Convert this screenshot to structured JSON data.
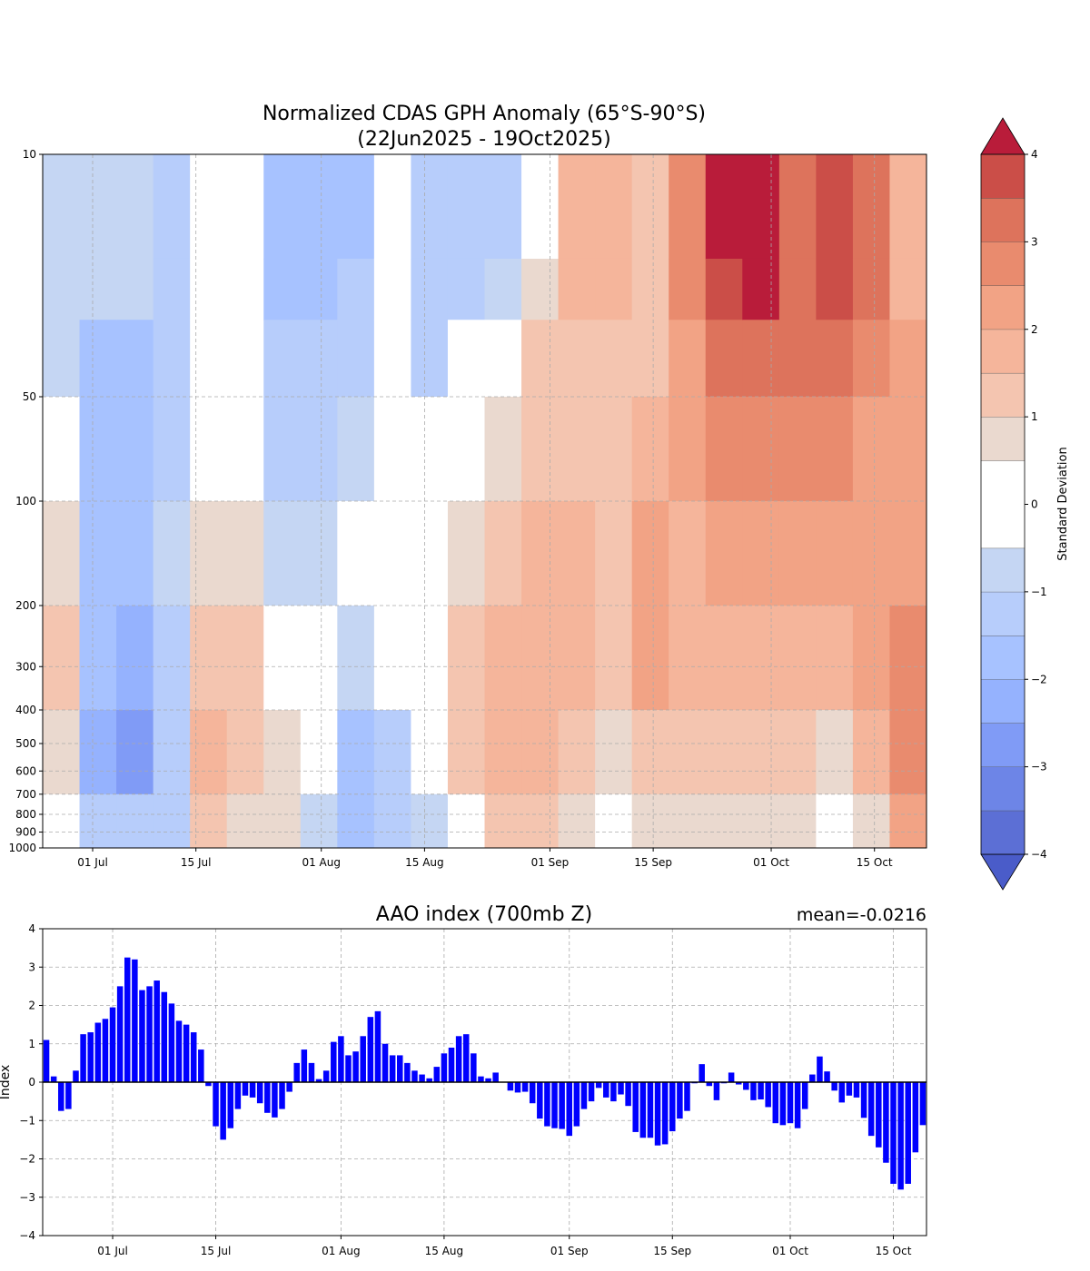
{
  "chart_data": [
    {
      "type": "heatmap",
      "title_line1": "Normalized CDAS GPH Anomaly (65°S-90°S)",
      "title_line2": "(22Jun2025 - 19Oct2025)",
      "ylabel_ticks": [
        "10",
        "50",
        "100",
        "200",
        "300",
        "400",
        "500",
        "600",
        "700",
        "800",
        "900",
        "1000"
      ],
      "ytick_values": [
        10,
        50,
        100,
        200,
        300,
        400,
        500,
        600,
        700,
        800,
        900,
        1000
      ],
      "ylim": [
        1000,
        10
      ],
      "yscale": "log",
      "xtick_labels": [
        "01 Jul",
        "15 Jul",
        "01 Aug",
        "15 Aug",
        "01 Sep",
        "15 Sep",
        "01 Oct",
        "15 Oct"
      ],
      "xtick_days": [
        9,
        23,
        40,
        54,
        71,
        85,
        101,
        115
      ],
      "grid_level_bounds": [
        10,
        20,
        30,
        50,
        100,
        200,
        400,
        700,
        1000
      ],
      "grid_values_by_5day_column": [
        [
          -1,
          -1,
          -0.6,
          0,
          0.6,
          1.1,
          0.6,
          0
        ],
        [
          -1,
          -1,
          -1.6,
          -1.6,
          -1.6,
          -1.6,
          -2.1,
          -1.1
        ],
        [
          -1,
          -1,
          -1.6,
          -1.6,
          -1.6,
          -2.1,
          -2.6,
          -1.1
        ],
        [
          -1.1,
          -1.1,
          -1.1,
          -1.1,
          -0.6,
          -1.1,
          -1.1,
          -1.1
        ],
        [
          0,
          0,
          0,
          0,
          0.6,
          1.1,
          1.6,
          1.1
        ],
        [
          0,
          0,
          0,
          0,
          0.6,
          1.1,
          1.1,
          0.6
        ],
        [
          -1.6,
          -1.6,
          -1.1,
          -1.1,
          -0.6,
          0,
          0.6,
          0.6
        ],
        [
          -1.6,
          -1.6,
          -1.1,
          -1.1,
          -0.6,
          0,
          0,
          -0.6
        ],
        [
          -1.6,
          -1.1,
          -1.1,
          -0.6,
          0,
          -0.6,
          -1.6,
          -1.6
        ],
        [
          0,
          0,
          0,
          0,
          0,
          0,
          -1.1,
          -1.1
        ],
        [
          -1.1,
          -1.1,
          -1.1,
          0,
          0,
          0,
          0,
          -0.6
        ],
        [
          -1.1,
          -1.1,
          0,
          0,
          0.6,
          1.1,
          1.1,
          0
        ],
        [
          -1.1,
          -0.6,
          0,
          0.6,
          1.1,
          1.6,
          1.6,
          1.1
        ],
        [
          0,
          0.6,
          1.1,
          1.1,
          1.6,
          1.6,
          1.6,
          1.1
        ],
        [
          1.6,
          1.6,
          1.1,
          1.1,
          1.6,
          1.6,
          1.1,
          0.6
        ],
        [
          1.6,
          1.6,
          1.1,
          1.1,
          1.1,
          1.1,
          0.6,
          0
        ],
        [
          1.1,
          1.1,
          1.1,
          1.6,
          2.1,
          2.1,
          1.1,
          0.6
        ],
        [
          2.6,
          2.6,
          2.1,
          2.1,
          1.6,
          1.6,
          1.1,
          0.6
        ],
        [
          4.1,
          3.6,
          3.1,
          2.6,
          2.1,
          1.6,
          1.1,
          0.6
        ],
        [
          4.1,
          4.1,
          3.1,
          2.6,
          2.1,
          1.6,
          1.1,
          0.6
        ],
        [
          3.1,
          3.1,
          3.1,
          2.6,
          2.1,
          1.6,
          1.1,
          0.6
        ],
        [
          3.6,
          3.6,
          3.1,
          2.6,
          2.1,
          1.6,
          0.6,
          0
        ],
        [
          3.1,
          3.1,
          2.6,
          2.1,
          2.1,
          2.1,
          1.6,
          0.6
        ],
        [
          1.6,
          1.6,
          2.1,
          2.1,
          2.1,
          2.6,
          2.6,
          2.1
        ]
      ],
      "colorbar": {
        "label": "Standard Deviation",
        "tick_labels": [
          "4",
          "3",
          "2",
          "1",
          "0",
          "−1",
          "−2",
          "−3",
          "−4"
        ],
        "tick_values": [
          4,
          3,
          2,
          1,
          0,
          -1,
          -2,
          -3,
          -4
        ],
        "bounds": [
          -4,
          -3.5,
          -3,
          -2.5,
          -2,
          -1.5,
          -1,
          -0.5,
          0.5,
          1,
          1.5,
          2,
          2.5,
          3,
          3.5,
          4
        ],
        "colors": [
          "#5c6fd5",
          "#6d85e7",
          "#809bf6",
          "#95b2fe",
          "#a7c2ff",
          "#b7cdfb",
          "#c5d6f3",
          "#ffffff",
          "#ead9cf",
          "#f4c5b0",
          "#f5b59b",
          "#f2a385",
          "#e98b6e",
          "#dd735c",
          "#cb4e48"
        ],
        "under_color": "#4a5cc9",
        "over_color": "#b91c3a"
      }
    },
    {
      "type": "bar",
      "title": "AAO index (700mb Z)",
      "annotation": "mean=-0.0216",
      "ylabel": "Index",
      "ylim": [
        -4,
        4
      ],
      "ytick_labels": [
        "4",
        "3",
        "2",
        "1",
        "0",
        "−1",
        "−2",
        "−3",
        "−4"
      ],
      "ytick_values": [
        4,
        3,
        2,
        1,
        0,
        -1,
        -2,
        -3,
        -4
      ],
      "xtick_labels": [
        "01 Jul",
        "15 Jul",
        "01 Aug",
        "15 Aug",
        "01 Sep",
        "15 Sep",
        "01 Oct",
        "15 Oct"
      ],
      "xtick_days": [
        9,
        23,
        40,
        54,
        71,
        85,
        101,
        115
      ],
      "bar_color": "#0000ff",
      "start_date": "22Jun2025",
      "values": [
        1.1,
        0.15,
        -0.75,
        -0.7,
        0.3,
        1.25,
        1.3,
        1.55,
        1.65,
        1.95,
        2.5,
        3.25,
        3.2,
        2.4,
        2.5,
        2.65,
        2.35,
        2.05,
        1.6,
        1.5,
        1.3,
        0.85,
        -0.1,
        -1.15,
        -1.5,
        -1.2,
        -0.7,
        -0.35,
        -0.4,
        -0.55,
        -0.8,
        -0.92,
        -0.7,
        -0.25,
        0.5,
        0.85,
        0.5,
        0.08,
        0.3,
        1.05,
        1.2,
        0.7,
        0.8,
        1.2,
        1.7,
        1.85,
        1.0,
        0.7,
        0.7,
        0.5,
        0.3,
        0.2,
        0.1,
        0.4,
        0.75,
        0.9,
        1.2,
        1.25,
        0.75,
        0.15,
        0.1,
        0.25,
        0,
        -0.22,
        -0.27,
        -0.25,
        -0.55,
        -0.95,
        -1.15,
        -1.2,
        -1.22,
        -1.4,
        -1.15,
        -0.7,
        -0.5,
        -0.15,
        -0.4,
        -0.5,
        -0.32,
        -0.62,
        -1.3,
        -1.45,
        -1.45,
        -1.65,
        -1.62,
        -1.28,
        -0.95,
        -0.75,
        -0.03,
        0.47,
        -0.1,
        -0.47,
        -0.03,
        0.25,
        -0.06,
        -0.2,
        -0.47,
        -0.45,
        -0.65,
        -1.07,
        -1.12,
        -1.07,
        -1.2,
        -0.7,
        0.2,
        0.67,
        0.28,
        -0.22,
        -0.53,
        -0.35,
        -0.4,
        -0.93,
        -1.4,
        -1.7,
        -2.1,
        -2.65,
        -2.8,
        -2.65,
        -1.83,
        -1.12
      ]
    }
  ]
}
